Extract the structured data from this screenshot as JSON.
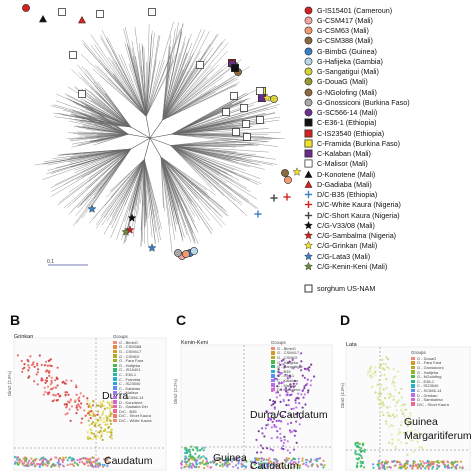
{
  "top_panel": {
    "legend": [
      {
        "label": "G-IS15401 (Cameroun)",
        "shape": "circle",
        "color": "#d4231f"
      },
      {
        "label": "G-CSM417 (Mali)",
        "shape": "circle",
        "color": "#f3a6a0"
      },
      {
        "label": "G-CSM63 (Mali)",
        "shape": "circle",
        "color": "#f39a6e"
      },
      {
        "label": "G-CSM388 (Mali)",
        "shape": "circle",
        "color": "#8b6a3e"
      },
      {
        "label": "G-BimbG (Guinea)",
        "shape": "circle",
        "color": "#3b7fc8"
      },
      {
        "label": "G-Hafijeka (Gambia)",
        "shape": "circle",
        "color": "#b9d8ea"
      },
      {
        "label": "G-Sangatigui (Mali)",
        "shape": "circle",
        "color": "#d7d23a"
      },
      {
        "label": "G-DouaG (Mali)",
        "shape": "circle",
        "color": "#9a9a2e"
      },
      {
        "label": "G-NGolofing (Mali)",
        "shape": "circle",
        "color": "#8e6b3d"
      },
      {
        "label": "G-Gnossiconi (Burkina Faso)",
        "shape": "circle",
        "color": "#a9a9a9"
      },
      {
        "label": "G-SC566-14 (Mali)",
        "shape": "circle",
        "color": "#6d2f8e"
      },
      {
        "label": "C-E36-1 (Ethiopia)",
        "shape": "square",
        "color": "#111111"
      },
      {
        "label": "C-IS23540 (Ethiopia)",
        "shape": "square",
        "color": "#d4231f"
      },
      {
        "label": "C-Framida (Burkina Faso)",
        "shape": "square",
        "color": "#f0e12a"
      },
      {
        "label": "C-Kalaban (Mali)",
        "shape": "square",
        "color": "#6a2c8a"
      },
      {
        "label": "C-Malisor (Mali)",
        "shape": "square",
        "color": "#ffffff"
      },
      {
        "label": "D-Konotene (Mali)",
        "shape": "triangle",
        "color": "#111111"
      },
      {
        "label": "D-Gadiaba (Mali)",
        "shape": "triangle",
        "color": "#d4231f"
      },
      {
        "label": "D/C-B35 (Ethiopia)",
        "shape": "plus",
        "color": "#3b7fc8"
      },
      {
        "label": "D/C-White Kaura (Nigeria)",
        "shape": "plus",
        "color": "#d4231f"
      },
      {
        "label": "D/C-Short Kaura (Nigeria)",
        "shape": "plus",
        "color": "#444444"
      },
      {
        "label": "C/G-V33/08 (Mali)",
        "shape": "star",
        "color": "#111111"
      },
      {
        "label": "C/G-Sambalma (Nigeria)",
        "shape": "star",
        "color": "#d4231f"
      },
      {
        "label": "C/G-Grinkan (Mali)",
        "shape": "star",
        "color": "#f0e12a"
      },
      {
        "label": "C/G-Lata3 (Mali)",
        "shape": "star",
        "color": "#3b7fc8"
      },
      {
        "label": "C/G-Kenin-Keni (Mali)",
        "shape": "star",
        "color": "#6c8a3a"
      }
    ],
    "nam_label": "sorghum US-NAM",
    "scale_label": "0.1"
  },
  "panels": [
    {
      "letter": "B",
      "title": "Grinkan",
      "y_axis": "Dim2 (2.9%)",
      "groups_title": "Groups",
      "groups": [
        {
          "label": "G - BimbG",
          "color": "#f08a7e"
        },
        {
          "label": "G - CSM388",
          "color": "#e58a4a"
        },
        {
          "label": "G - CSM417",
          "color": "#d49a2a"
        },
        {
          "label": "G - CSM63",
          "color": "#b9a92a"
        },
        {
          "label": "G - Fara Fara",
          "color": "#8fb52a"
        },
        {
          "label": "G - Hafijeka",
          "color": "#4fb84a"
        },
        {
          "label": "G - IS15401",
          "color": "#2ab87a"
        },
        {
          "label": "C - E36-1",
          "color": "#2ab8a5"
        },
        {
          "label": "C - Framida",
          "color": "#2ab0c8"
        },
        {
          "label": "C - IS23540",
          "color": "#2aa0e0"
        },
        {
          "label": "C - Kalaban",
          "color": "#5a8ef0"
        },
        {
          "label": "C - Malisor",
          "color": "#8f7ef0"
        },
        {
          "label": "C - SC566-14",
          "color": "#b86ee8"
        },
        {
          "label": "D - Konotene",
          "color": "#d865d0"
        },
        {
          "label": "D - Gadiaba Din",
          "color": "#e865b0"
        },
        {
          "label": "D/C - B35",
          "color": "#f0658e"
        },
        {
          "label": "D/C - Short Kaura",
          "color": "#f07a6e"
        },
        {
          "label": "D/C - White Kaura",
          "color": "#f0906a"
        }
      ],
      "labels": [
        "Durra",
        "Caudatum"
      ]
    },
    {
      "letter": "C",
      "title": "Kenin-Keni",
      "y_axis": "Dim2 (3.2%)",
      "groups_title": "Groups",
      "groups": [
        {
          "label": "G - BimbG",
          "color": "#f08a7e"
        },
        {
          "label": "G - CSM417",
          "color": "#d49a2a"
        },
        {
          "label": "G - CSM63",
          "color": "#b9a92a"
        },
        {
          "label": "G - Hafijeka",
          "color": "#4fb84a"
        },
        {
          "label": "G - Sangatigui",
          "color": "#2ab87a"
        },
        {
          "label": "C - B35",
          "color": "#2ab0c8"
        },
        {
          "label": "C - E36-1",
          "color": "#5a8ef0"
        },
        {
          "label": "C - Kalaban",
          "color": "#8f7ef0"
        },
        {
          "label": "C - Malisor",
          "color": "#b86ee8"
        },
        {
          "label": "D - Konotene",
          "color": "#d865d0"
        }
      ],
      "labels": [
        "Durra/Caudatum",
        "Guinea",
        "Caudatum"
      ]
    },
    {
      "letter": "D",
      "title": "Lata",
      "y_axis": "Dim2 (4.0%)",
      "groups_title": "Groups",
      "groups": [
        {
          "label": "G - DouaG",
          "color": "#f08a7e"
        },
        {
          "label": "G - Fara Fara",
          "color": "#d49a2a"
        },
        {
          "label": "G - Gnossiconi",
          "color": "#b9a92a"
        },
        {
          "label": "G - Hafijeka",
          "color": "#8fb52a"
        },
        {
          "label": "G - NGolofing",
          "color": "#4fb84a"
        },
        {
          "label": "C - E36-1",
          "color": "#2ab87a"
        },
        {
          "label": "C - IS23540",
          "color": "#2ab0c8"
        },
        {
          "label": "C - SC566-14",
          "color": "#5a8ef0"
        },
        {
          "label": "D - Grinkan",
          "color": "#b86ee8"
        },
        {
          "label": "D - Sambalma",
          "color": "#d865d0"
        },
        {
          "label": "D/C - Short Kaura",
          "color": "#f0658e"
        }
      ],
      "labels": [
        "Guinea",
        "Margaritiferum"
      ]
    }
  ]
}
